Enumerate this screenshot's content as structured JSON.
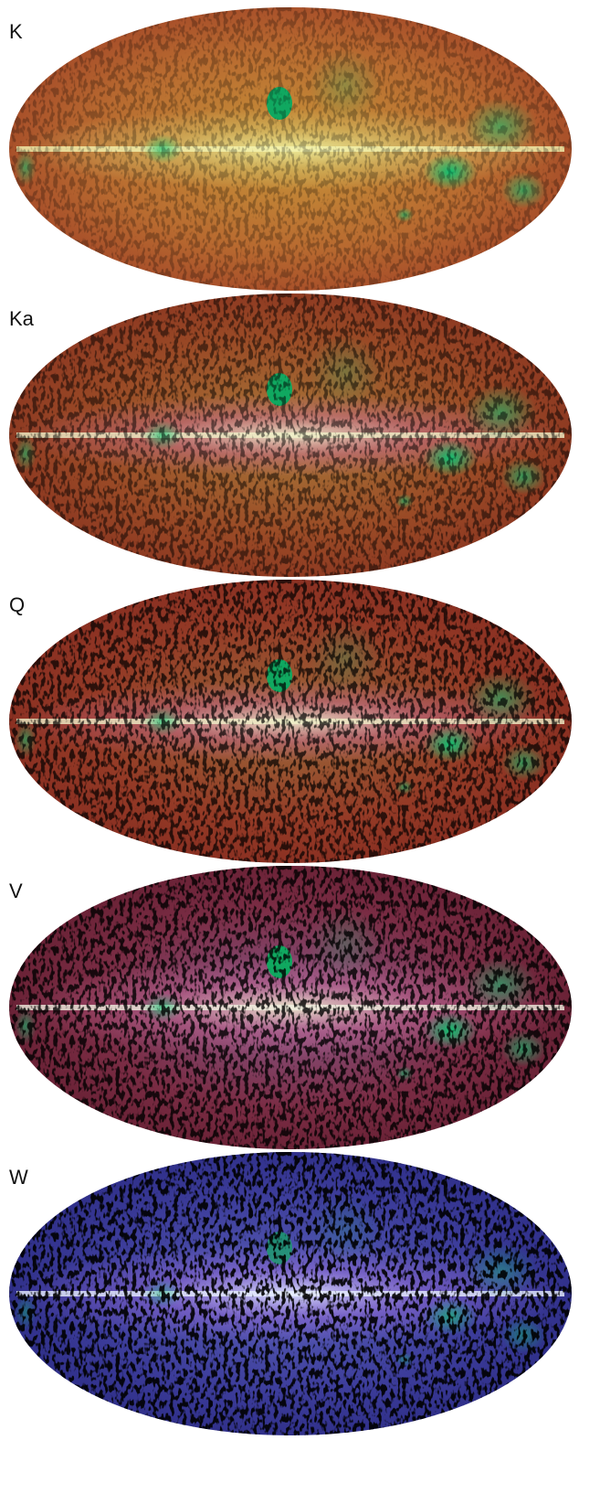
{
  "panels": [
    {
      "label": "K"
    },
    {
      "label": "Ka"
    },
    {
      "label": "Q"
    },
    {
      "label": "V"
    },
    {
      "label": "W"
    }
  ]
}
